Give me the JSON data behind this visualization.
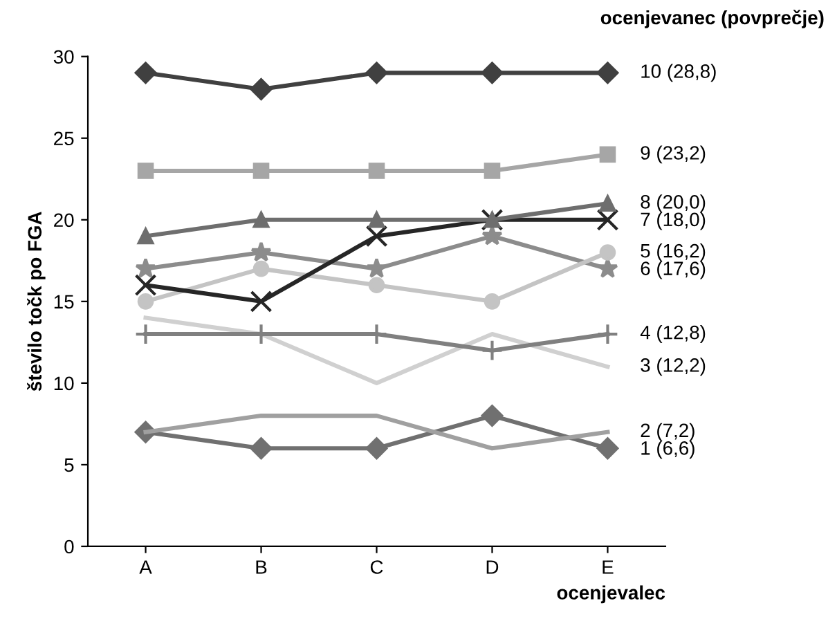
{
  "chart_data": {
    "type": "line",
    "ylabel": "število točk po FGA",
    "xlabel": "ocenjevalec",
    "legend_title": "ocenjevanec (povprečje)",
    "categories": [
      "A",
      "B",
      "C",
      "D",
      "E"
    ],
    "ylim": [
      0,
      30
    ],
    "yticks": [
      0,
      5,
      10,
      15,
      20,
      25,
      30
    ],
    "grid": false,
    "legend": "right",
    "series": [
      {
        "name": "10 (28,8)",
        "color": "#404040",
        "marker": "diamond",
        "values": [
          29,
          28,
          29,
          29,
          29
        ]
      },
      {
        "name": "9 (23,2)",
        "color": "#a6a6a6",
        "marker": "square",
        "values": [
          23,
          23,
          23,
          23,
          24
        ]
      },
      {
        "name": "8 (20,0)",
        "color": "#6e6e6e",
        "marker": "triangle",
        "values": [
          19,
          20,
          20,
          20,
          21
        ]
      },
      {
        "name": "7 (18,0)",
        "color": "#262626",
        "marker": "cross",
        "values": [
          16,
          15,
          19,
          20,
          20
        ]
      },
      {
        "name": "5 (16,2)",
        "color": "#c4c4c4",
        "marker": "circle",
        "values": [
          15,
          17,
          16,
          15,
          18
        ]
      },
      {
        "name": "6 (17,6)",
        "color": "#8c8c8c",
        "marker": "star",
        "values": [
          17,
          18,
          17,
          19,
          17
        ]
      },
      {
        "name": "4 (12,8)",
        "color": "#808080",
        "marker": "plus",
        "values": [
          13,
          13,
          13,
          12,
          13
        ]
      },
      {
        "name": "3 (12,2)",
        "color": "#d0d0d0",
        "marker": "none",
        "values": [
          14,
          13,
          10,
          13,
          11
        ]
      },
      {
        "name": "2 (7,2)",
        "color": "#a0a0a0",
        "marker": "none",
        "values": [
          7,
          8,
          8,
          6,
          7
        ]
      },
      {
        "name": "1 (6,6)",
        "color": "#707070",
        "marker": "diamond",
        "values": [
          7,
          6,
          6,
          8,
          6
        ]
      }
    ]
  }
}
